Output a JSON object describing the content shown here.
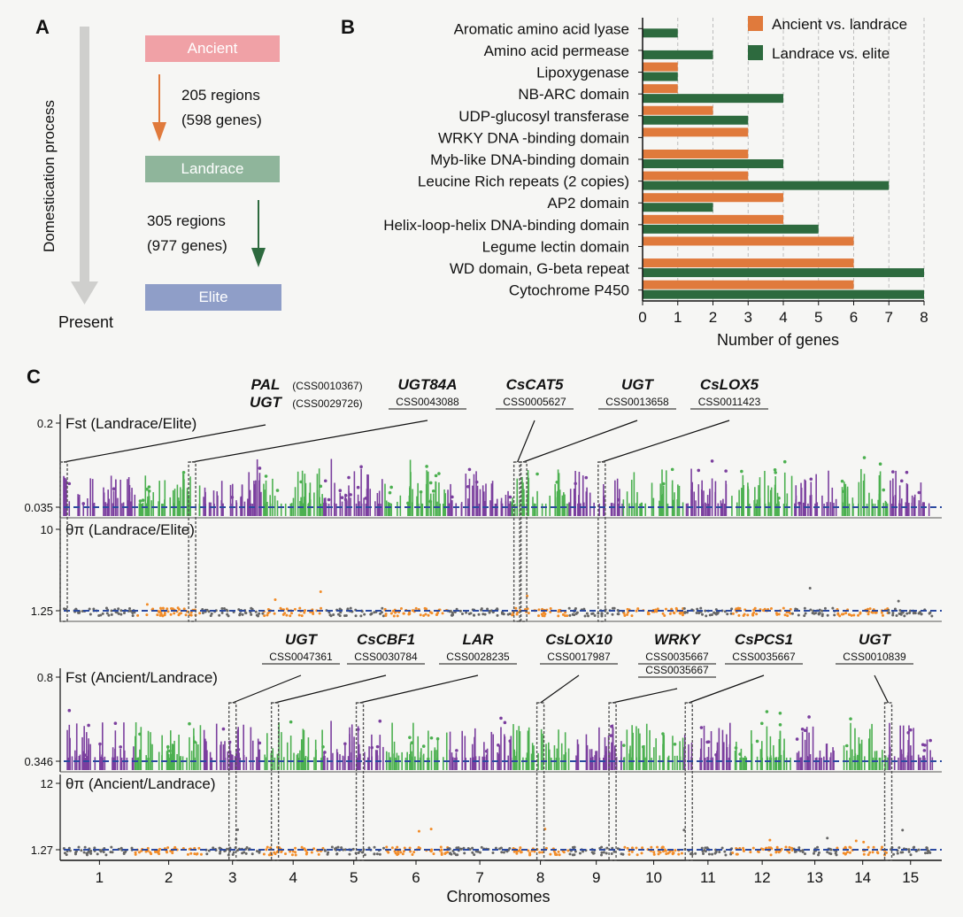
{
  "panels": {
    "a": "A",
    "b": "B",
    "c": "C"
  },
  "panel_a": {
    "axis_label": "Domestication process",
    "end_label": "Present",
    "stages": [
      {
        "label": "Ancient",
        "color": "#f0a1a6"
      },
      {
        "label": "Landrace",
        "color": "#8fb59b"
      },
      {
        "label": "Elite",
        "color": "#8f9ec8"
      }
    ],
    "transitions": [
      {
        "regions": "205 regions",
        "genes": "(598 genes)",
        "color": "#e07a3c"
      },
      {
        "regions": "305 regions",
        "genes": "(977 genes)",
        "color": "#2d6a3e"
      }
    ]
  },
  "chart_data": [
    {
      "type": "bar",
      "orientation": "horizontal",
      "title": "",
      "xlabel": "Number of genes",
      "xlim": [
        0,
        8
      ],
      "xticks": [
        "0",
        "1",
        "2",
        "3",
        "4",
        "5",
        "6",
        "7",
        "8"
      ],
      "categories": [
        "Aromatic amino acid lyase",
        "Amino acid permease",
        "Lipoxygenase",
        "NB-ARC domain",
        "UDP-glucosyl transferase",
        "WRKY DNA -binding domain",
        "Myb-like DNA-binding domain",
        "Leucine Rich repeats (2 copies)",
        "AP2 domain",
        "Helix-loop-helix DNA-binding domain",
        "Legume lectin domain",
        "WD domain, G-beta repeat",
        "Cytochrome P450"
      ],
      "series": [
        {
          "name": "Ancient vs. landrace",
          "color": "#e07a3c",
          "values": [
            0,
            0,
            1,
            1,
            2,
            3,
            3,
            3,
            4,
            4,
            6,
            6,
            6
          ]
        },
        {
          "name": "Landrace vs. elite",
          "color": "#2d6a3e",
          "values": [
            1,
            2,
            1,
            4,
            3,
            0,
            4,
            7,
            2,
            5,
            0,
            8,
            8
          ]
        }
      ],
      "legend_position": "top-right",
      "grid": "vertical dashed"
    },
    {
      "type": "scatter",
      "subtype": "manhattan",
      "xlabel": "Chromosomes",
      "chromosomes": [
        "1",
        "2",
        "3",
        "4",
        "5",
        "6",
        "7",
        "8",
        "9",
        "10",
        "11",
        "12",
        "13",
        "14",
        "15"
      ],
      "colors": {
        "fst_odd": "#7b3f9e",
        "fst_even": "#4cb050",
        "pi_odd": "#666666",
        "pi_even": "#f28c28",
        "threshold": "#2b4aa0",
        "highlight": "#555555"
      },
      "tracks": [
        {
          "name": "Fst (Landrace/Elite)",
          "kind": "fst",
          "ylim": [
            0,
            0.2
          ],
          "top_tick": "0.2",
          "threshold_label": "0.035",
          "threshold": 0.035
        },
        {
          "name": "θπ (Landrace/Elite)",
          "kind": "pi",
          "ylim": [
            0,
            10
          ],
          "top_tick": "10",
          "threshold_label": "1.25",
          "threshold": 1.25
        },
        {
          "name": "Fst (Ancient/Landrace)",
          "kind": "fst",
          "ylim": [
            0,
            0.8
          ],
          "top_tick": "0.8",
          "threshold_label": "0.346",
          "threshold": 0.346
        },
        {
          "name": "θπ (Ancient/Landrace)",
          "kind": "pi",
          "ylim": [
            0,
            12
          ],
          "top_tick": "12",
          "threshold_label": "1.27",
          "threshold": 1.27
        }
      ],
      "annotations_top": [
        {
          "genes": [
            "PAL",
            "UGT"
          ],
          "ids": [
            "(CSS0010367)",
            "(CSS0029726)"
          ],
          "chrom": 1.0
        },
        {
          "genes": [
            "UGT84A"
          ],
          "ids": [
            "CSS0043088"
          ],
          "chrom": 2.85
        },
        {
          "genes": [
            "CsCAT5"
          ],
          "ids": [
            "CSS0005627"
          ],
          "chrom": 8.1
        },
        {
          "genes": [
            "UGT"
          ],
          "ids": [
            "CSS0013658"
          ],
          "chrom": 8.2
        },
        {
          "genes": [
            "CsLOX5"
          ],
          "ids": [
            "CSS0011423"
          ],
          "chrom": 9.6
        }
      ],
      "annotations_bottom": [
        {
          "genes": [
            "UGT"
          ],
          "ids": [
            "CSS0047361"
          ],
          "chrom": 3.5
        },
        {
          "genes": [
            "CsCBF1"
          ],
          "ids": [
            "CSS0030784"
          ],
          "chrom": 4.2
        },
        {
          "genes": [
            "LAR"
          ],
          "ids": [
            "CSS0028235"
          ],
          "chrom": 5.6
        },
        {
          "genes": [
            "CsLOX10"
          ],
          "ids": [
            "CSS0017987"
          ],
          "chrom": 8.5
        },
        {
          "genes": [
            "WRKY"
          ],
          "ids": [
            "CSS0035667",
            "CSS0035667"
          ],
          "chrom": 9.8
        },
        {
          "genes": [
            "CsPCS1"
          ],
          "ids": [
            "CSS0035667"
          ],
          "chrom": 11.1
        },
        {
          "genes": [
            "UGT"
          ],
          "ids": [
            "CSS0010839"
          ],
          "chrom": 15.0
        }
      ]
    }
  ]
}
